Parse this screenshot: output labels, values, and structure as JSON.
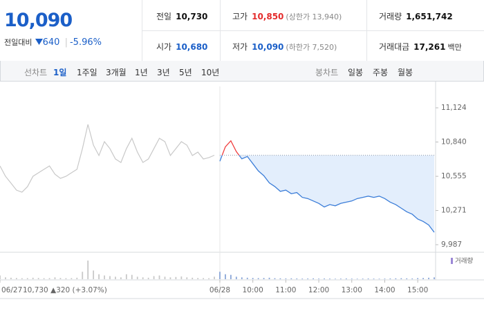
{
  "header": {
    "price": "10,090",
    "change_label": "전일대비",
    "change": "640",
    "change_pct": "-5.96%",
    "stats": [
      {
        "label": "전일",
        "value": "10,730"
      },
      {
        "label": "고가",
        "value": "10,850",
        "note": "(상한가 13,940)"
      },
      {
        "label": "거래량",
        "value": "1,651,742"
      },
      {
        "label": "시가",
        "value": "10,680"
      },
      {
        "label": "저가",
        "value": "10,090",
        "note": "(하한가 7,520)"
      },
      {
        "label": "거래대금",
        "value": "17,261",
        "note": "백만"
      }
    ]
  },
  "tabs": {
    "line_label": "선차트",
    "line_periods": [
      "1일",
      "1주일",
      "3개월",
      "1년",
      "3년",
      "5년",
      "10년"
    ],
    "candle_label": "봉차트",
    "candle_periods": [
      "일봉",
      "주봉",
      "월봉"
    ]
  },
  "chart_data": [
    {
      "type": "line",
      "categories": [
        "06/27",
        null,
        null,
        null,
        null,
        null,
        null,
        null,
        null,
        null,
        null,
        null,
        null,
        null,
        null,
        null,
        null,
        null,
        null,
        null,
        null,
        null,
        null,
        null,
        null,
        null,
        null,
        null,
        null,
        null,
        null,
        null,
        null,
        null,
        null,
        null,
        null,
        null,
        null,
        null,
        "06/28",
        null,
        null,
        null,
        null,
        null,
        "10:00",
        null,
        null,
        null,
        null,
        null,
        "11:00",
        null,
        null,
        null,
        null,
        null,
        "12:00",
        null,
        null,
        null,
        null,
        null,
        "13:00",
        null,
        null,
        null,
        null,
        null,
        "14:00",
        null,
        null,
        null,
        null,
        null,
        "15:00",
        null,
        null,
        null
      ],
      "series": [
        {
          "name": "06/27",
          "color": "#c8c8c8",
          "values": [
            10641,
            10555,
            10498,
            10440,
            10423,
            10469,
            10555,
            10584,
            10613,
            10641,
            10572,
            10538,
            10555,
            10584,
            10613,
            10785,
            10986,
            10814,
            10728,
            10843,
            10785,
            10699,
            10670,
            10785,
            10871,
            10756,
            10670,
            10699,
            10785,
            10871,
            10843,
            10728,
            10785,
            10843,
            10814,
            10728,
            10756,
            10699,
            10710,
            10730,
            null,
            null,
            null,
            null,
            null,
            null,
            null,
            null,
            null,
            null,
            null,
            null,
            null,
            null,
            null,
            null,
            null,
            null,
            null,
            null,
            null,
            null,
            null,
            null,
            null,
            null,
            null,
            null,
            null,
            null,
            null,
            null,
            null,
            null,
            null,
            null,
            null,
            null,
            null,
            null
          ]
        },
        {
          "name": "06/28",
          "color": "#3b7dd8",
          "values": [
            null,
            null,
            null,
            null,
            null,
            null,
            null,
            null,
            null,
            null,
            null,
            null,
            null,
            null,
            null,
            null,
            null,
            null,
            null,
            null,
            null,
            null,
            null,
            null,
            null,
            null,
            null,
            null,
            null,
            null,
            null,
            null,
            null,
            null,
            null,
            null,
            null,
            null,
            null,
            null,
            10680,
            10800,
            10850,
            10760,
            10700,
            10720,
            10660,
            10600,
            10560,
            10500,
            10470,
            10430,
            10440,
            10410,
            10420,
            10380,
            10370,
            10350,
            10330,
            10300,
            10320,
            10310,
            10330,
            10340,
            10350,
            10370,
            10380,
            10390,
            10380,
            10390,
            10370,
            10340,
            10320,
            10290,
            10260,
            10240,
            10200,
            10180,
            10150,
            10090
          ]
        }
      ],
      "reference": 10730,
      "above_color": "#f03c3c",
      "fill_color": "#e3eefc",
      "annotation": "10,730 ▲320 (+3.07%)",
      "ylim": [
        9924,
        11302
      ],
      "yticks": [
        {
          "value": 11124,
          "label": "11,124"
        },
        {
          "value": 10840,
          "label": "10,840"
        },
        {
          "value": 10555,
          "label": "10,555"
        },
        {
          "value": 10271,
          "label": "10,271"
        },
        {
          "value": 9987,
          "label": "9,987"
        }
      ]
    },
    {
      "type": "bar",
      "legend": "거래량",
      "legend_color": "#9b87d6",
      "colors": [
        "#c8c8c8",
        "#8aa6d8"
      ],
      "ylim": [
        0,
        200000
      ],
      "values": [
        30000,
        15000,
        12000,
        10000,
        8000,
        9000,
        12000,
        10000,
        8000,
        9000,
        15000,
        10000,
        8000,
        9000,
        12000,
        60000,
        150000,
        70000,
        40000,
        30000,
        25000,
        20000,
        15000,
        40000,
        35000,
        20000,
        15000,
        12000,
        25000,
        30000,
        20000,
        15000,
        18000,
        22000,
        15000,
        12000,
        10000,
        9000,
        8000,
        20000,
        60000,
        40000,
        35000,
        20000,
        15000,
        12000,
        10000,
        9000,
        10000,
        12000,
        8000,
        7000,
        6000,
        7000,
        6000,
        5000,
        6000,
        7000,
        5000,
        6000,
        5000,
        4000,
        5000,
        6000,
        5000,
        4000,
        5000,
        6000,
        5000,
        4000,
        5000,
        6000,
        7000,
        8000,
        7000,
        6000,
        9000,
        10000,
        12000,
        15000
      ]
    }
  ]
}
